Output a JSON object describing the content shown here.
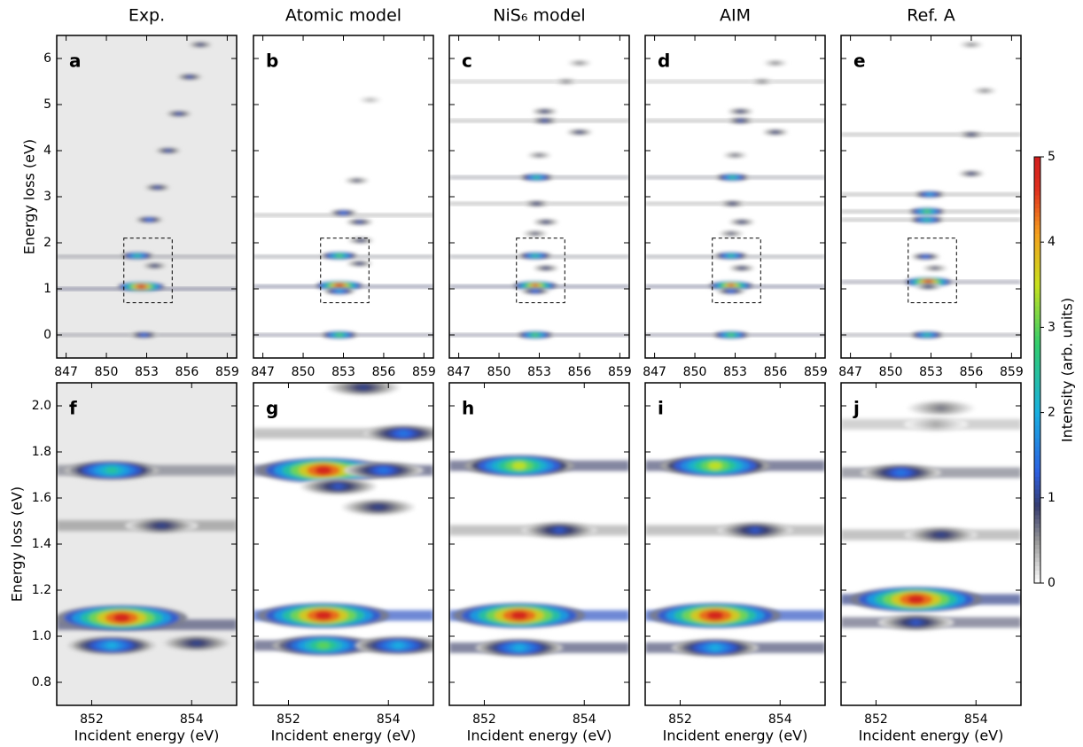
{
  "chart_data": [
    {
      "type": "heatmap",
      "title": "Exp.",
      "label": "a",
      "ylabel": "Energy loss (eV)",
      "xlim": [
        846.3,
        859.7
      ],
      "ylim": [
        -0.5,
        6.5
      ],
      "xticks": [
        847,
        850,
        853,
        856,
        859
      ],
      "yticks": [
        0,
        1,
        2,
        3,
        4,
        5,
        6
      ],
      "show_ytick_labels": true,
      "background": "#e9e9e9",
      "spots": [
        {
          "x": 852.8,
          "y": 0,
          "value": 1.5
        },
        {
          "x": 852.6,
          "y": 1.05,
          "value": 5
        },
        {
          "x": 852.3,
          "y": 1.72,
          "value": 2.5
        },
        {
          "x": 853.6,
          "y": 1.5,
          "value": 1
        },
        {
          "x": 853.2,
          "y": 2.5,
          "value": 1.5
        },
        {
          "x": 853.8,
          "y": 3.2,
          "value": 1.2
        },
        {
          "x": 854.6,
          "y": 4,
          "value": 1.2
        },
        {
          "x": 855.4,
          "y": 4.8,
          "value": 1.2
        },
        {
          "x": 856.2,
          "y": 5.6,
          "value": 1.2
        },
        {
          "x": 857,
          "y": 6.3,
          "value": 1
        }
      ],
      "bands": {
        "y": [
          0,
          1,
          1.7
        ],
        "values": [
          0.6,
          0.8,
          0.6
        ]
      }
    },
    {
      "type": "heatmap",
      "title": "Atomic model",
      "label": "b",
      "xlim": [
        846.3,
        859.7
      ],
      "ylim": [
        -0.5,
        6.5
      ],
      "xticks": [
        847,
        850,
        853,
        856,
        859
      ],
      "yticks": [
        0,
        1,
        2,
        3,
        4,
        5,
        6
      ],
      "show_ytick_labels": false,
      "spots": [
        {
          "x": 852.7,
          "y": 0,
          "value": 3
        },
        {
          "x": 852.7,
          "y": 1.07,
          "value": 5
        },
        {
          "x": 852.7,
          "y": 0.95,
          "value": 2
        },
        {
          "x": 852.7,
          "y": 1.72,
          "value": 3
        },
        {
          "x": 854.2,
          "y": 1.55,
          "value": 1
        },
        {
          "x": 854.3,
          "y": 2.05,
          "value": 1
        },
        {
          "x": 854.2,
          "y": 2.45,
          "value": 1.2
        },
        {
          "x": 853,
          "y": 2.65,
          "value": 1.5
        },
        {
          "x": 854,
          "y": 3.35,
          "value": 0.8
        },
        {
          "x": 855,
          "y": 5.1,
          "value": 0.4
        }
      ],
      "bands": {
        "y": [
          0,
          1.05,
          1.7,
          2.6
        ],
        "values": [
          0.7,
          0.8,
          0.6,
          0.5
        ]
      }
    },
    {
      "type": "heatmap",
      "title": "NiS₆ model",
      "label": "c",
      "xlim": [
        846.3,
        859.7
      ],
      "ylim": [
        -0.5,
        6.5
      ],
      "xticks": [
        847,
        850,
        853,
        856,
        859
      ],
      "yticks": [
        0,
        1,
        2,
        3,
        4,
        5,
        6
      ],
      "show_ytick_labels": false,
      "spots": [
        {
          "x": 852.7,
          "y": 0,
          "value": 3
        },
        {
          "x": 852.7,
          "y": 1.07,
          "value": 4.5
        },
        {
          "x": 852.7,
          "y": 0.95,
          "value": 1.5
        },
        {
          "x": 852.7,
          "y": 1.72,
          "value": 2.5
        },
        {
          "x": 853.5,
          "y": 1.45,
          "value": 1
        },
        {
          "x": 852.7,
          "y": 2.2,
          "value": 0.8
        },
        {
          "x": 853.5,
          "y": 2.45,
          "value": 1
        },
        {
          "x": 852.8,
          "y": 2.85,
          "value": 1
        },
        {
          "x": 852.8,
          "y": 3.42,
          "value": 2.5
        },
        {
          "x": 853,
          "y": 3.9,
          "value": 0.7
        },
        {
          "x": 853.4,
          "y": 4.65,
          "value": 1.2
        },
        {
          "x": 853.4,
          "y": 4.85,
          "value": 1
        },
        {
          "x": 856,
          "y": 4.4,
          "value": 1
        },
        {
          "x": 855,
          "y": 5.5,
          "value": 0.6
        },
        {
          "x": 856,
          "y": 5.9,
          "value": 0.6
        }
      ],
      "bands": {
        "y": [
          0,
          1.05,
          1.7,
          2.85,
          3.42,
          4.65,
          5.5
        ],
        "values": [
          0.7,
          0.8,
          0.6,
          0.5,
          0.6,
          0.5,
          0.4
        ]
      }
    },
    {
      "type": "heatmap",
      "title": "AIM",
      "label": "d",
      "xlim": [
        846.3,
        859.7
      ],
      "ylim": [
        -0.5,
        6.5
      ],
      "xticks": [
        847,
        850,
        853,
        856,
        859
      ],
      "yticks": [
        0,
        1,
        2,
        3,
        4,
        5,
        6
      ],
      "show_ytick_labels": false,
      "spots": [
        {
          "x": 852.7,
          "y": 0,
          "value": 3
        },
        {
          "x": 852.7,
          "y": 1.07,
          "value": 4.5
        },
        {
          "x": 852.7,
          "y": 0.95,
          "value": 1.5
        },
        {
          "x": 852.7,
          "y": 1.72,
          "value": 2.5
        },
        {
          "x": 853.5,
          "y": 1.45,
          "value": 1
        },
        {
          "x": 852.7,
          "y": 2.2,
          "value": 0.8
        },
        {
          "x": 853.5,
          "y": 2.45,
          "value": 1
        },
        {
          "x": 852.8,
          "y": 2.85,
          "value": 1
        },
        {
          "x": 852.8,
          "y": 3.42,
          "value": 2.5
        },
        {
          "x": 853,
          "y": 3.9,
          "value": 0.7
        },
        {
          "x": 853.4,
          "y": 4.65,
          "value": 1.2
        },
        {
          "x": 853.4,
          "y": 4.85,
          "value": 1
        },
        {
          "x": 856,
          "y": 4.4,
          "value": 1
        },
        {
          "x": 855,
          "y": 5.5,
          "value": 0.6
        },
        {
          "x": 856,
          "y": 5.9,
          "value": 0.6
        }
      ],
      "bands": {
        "y": [
          0,
          1.05,
          1.7,
          2.85,
          3.42,
          4.65,
          5.5
        ],
        "values": [
          0.7,
          0.8,
          0.6,
          0.5,
          0.6,
          0.5,
          0.4
        ]
      }
    },
    {
      "type": "heatmap",
      "title": "Ref. A",
      "label": "e",
      "xlim": [
        846.3,
        859.7
      ],
      "ylim": [
        -0.5,
        6.5
      ],
      "xticks": [
        847,
        850,
        853,
        856,
        859
      ],
      "yticks": [
        0,
        1,
        2,
        3,
        4,
        5,
        6
      ],
      "show_ytick_labels": false,
      "spots": [
        {
          "x": 852.7,
          "y": 0,
          "value": 2.5
        },
        {
          "x": 852.8,
          "y": 1.15,
          "value": 5
        },
        {
          "x": 852.8,
          "y": 1.05,
          "value": 1
        },
        {
          "x": 852.6,
          "y": 1.7,
          "value": 1.5
        },
        {
          "x": 853.3,
          "y": 1.45,
          "value": 0.8
        },
        {
          "x": 852.7,
          "y": 2.5,
          "value": 2.5
        },
        {
          "x": 852.7,
          "y": 2.68,
          "value": 3
        },
        {
          "x": 852.9,
          "y": 3.05,
          "value": 2
        },
        {
          "x": 856,
          "y": 3.5,
          "value": 1
        },
        {
          "x": 856,
          "y": 4.35,
          "value": 1
        },
        {
          "x": 857,
          "y": 5.3,
          "value": 0.6
        },
        {
          "x": 856,
          "y": 6.3,
          "value": 0.6
        }
      ],
      "bands": {
        "y": [
          0,
          1.15,
          2.5,
          2.68,
          3.05,
          4.35
        ],
        "values": [
          0.6,
          0.7,
          0.5,
          0.5,
          0.5,
          0.5
        ]
      }
    },
    {
      "type": "heatmap",
      "label": "f",
      "xlabel": "Incident energy (eV)",
      "ylabel": "Energy loss (eV)",
      "xlim": [
        851.3,
        854.9
      ],
      "ylim": [
        0.7,
        2.1
      ],
      "xticks": [
        852,
        854
      ],
      "yticks": [
        0.8,
        {
          "value": 1,
          "label": "1.0"
        },
        1.2,
        1.4,
        1.6,
        1.8,
        {
          "value": 2,
          "label": "2.0"
        }
      ],
      "show_ytick_labels": true,
      "background": "#e9e9e9",
      "spots": [
        {
          "x": 852.6,
          "y": 1.08,
          "value": 5
        },
        {
          "x": 852.4,
          "y": 0.96,
          "value": 2
        },
        {
          "x": 852.4,
          "y": 1.72,
          "value": 2.5
        },
        {
          "x": 853.4,
          "y": 1.48,
          "value": 1
        },
        {
          "x": 854.1,
          "y": 0.97,
          "value": 1
        }
      ],
      "bands": {
        "y": [
          1.05,
          1.72,
          1.48
        ],
        "values": [
          0.8,
          0.6,
          0.5
        ]
      }
    },
    {
      "type": "heatmap",
      "label": "g",
      "xlabel": "Incident energy (eV)",
      "xlim": [
        851.3,
        854.9
      ],
      "ylim": [
        0.7,
        2.1
      ],
      "xticks": [
        852,
        854
      ],
      "yticks": [
        0.8,
        {
          "value": 1,
          "label": "1.0"
        },
        1.2,
        1.4,
        1.6,
        1.8,
        {
          "value": 2,
          "label": "2.0"
        }
      ],
      "show_ytick_labels": false,
      "spots": [
        {
          "x": 852.7,
          "y": 1.09,
          "value": 5
        },
        {
          "x": 852.7,
          "y": 0.96,
          "value": 3
        },
        {
          "x": 854.2,
          "y": 0.96,
          "value": 2
        },
        {
          "x": 852.7,
          "y": 1.72,
          "value": 5
        },
        {
          "x": 853.9,
          "y": 1.72,
          "value": 1.5
        },
        {
          "x": 853,
          "y": 1.65,
          "value": 1.2
        },
        {
          "x": 854.3,
          "y": 1.88,
          "value": 1.5
        },
        {
          "x": 853.8,
          "y": 1.56,
          "value": 1
        },
        {
          "x": 853.5,
          "y": 2.08,
          "value": 1
        }
      ],
      "bands": {
        "y": [
          1.09,
          0.96,
          1.72,
          1.88
        ],
        "values": [
          1.2,
          0.8,
          0.8,
          0.4
        ]
      }
    },
    {
      "type": "heatmap",
      "label": "h",
      "xlabel": "Incident energy (eV)",
      "xlim": [
        851.3,
        854.9
      ],
      "ylim": [
        0.7,
        2.1
      ],
      "xticks": [
        852,
        854
      ],
      "yticks": [
        0.8,
        {
          "value": 1,
          "label": "1.0"
        },
        1.2,
        1.4,
        1.6,
        1.8,
        {
          "value": 2,
          "label": "2.0"
        }
      ],
      "show_ytick_labels": false,
      "spots": [
        {
          "x": 852.7,
          "y": 1.09,
          "value": 5
        },
        {
          "x": 852.7,
          "y": 0.95,
          "value": 2
        },
        {
          "x": 852.7,
          "y": 1.74,
          "value": 3.5
        },
        {
          "x": 853.5,
          "y": 1.46,
          "value": 1.2
        }
      ],
      "bands": {
        "y": [
          1.09,
          0.95,
          1.74,
          1.46
        ],
        "values": [
          1.2,
          0.8,
          0.8,
          0.4
        ]
      }
    },
    {
      "type": "heatmap",
      "label": "i",
      "xlabel": "Incident energy (eV)",
      "xlim": [
        851.3,
        854.9
      ],
      "ylim": [
        0.7,
        2.1
      ],
      "xticks": [
        852,
        854
      ],
      "yticks": [
        0.8,
        {
          "value": 1,
          "label": "1.0"
        },
        1.2,
        1.4,
        1.6,
        1.8,
        {
          "value": 2,
          "label": "2.0"
        }
      ],
      "show_ytick_labels": false,
      "spots": [
        {
          "x": 852.7,
          "y": 1.09,
          "value": 5
        },
        {
          "x": 852.7,
          "y": 0.95,
          "value": 2
        },
        {
          "x": 852.7,
          "y": 1.74,
          "value": 3.5
        },
        {
          "x": 853.5,
          "y": 1.46,
          "value": 1.2
        }
      ],
      "bands": {
        "y": [
          1.09,
          0.95,
          1.74,
          1.46
        ],
        "values": [
          1.2,
          0.8,
          0.8,
          0.4
        ]
      }
    },
    {
      "type": "heatmap",
      "label": "j",
      "xlabel": "Incident energy (eV)",
      "xlim": [
        851.3,
        854.9
      ],
      "ylim": [
        0.7,
        2.1
      ],
      "xticks": [
        852,
        854
      ],
      "yticks": [
        0.8,
        {
          "value": 1,
          "label": "1.0"
        },
        1.2,
        1.4,
        1.6,
        1.8,
        {
          "value": 2,
          "label": "2.0"
        }
      ],
      "show_ytick_labels": false,
      "spots": [
        {
          "x": 852.8,
          "y": 1.16,
          "value": 5
        },
        {
          "x": 852.8,
          "y": 1.06,
          "value": 1.2
        },
        {
          "x": 852.5,
          "y": 1.71,
          "value": 1.5
        },
        {
          "x": 853.3,
          "y": 1.44,
          "value": 1
        },
        {
          "x": 853.3,
          "y": 1.99,
          "value": 0.6
        },
        {
          "x": 853.2,
          "y": 1.92,
          "value": 0.4
        }
      ],
      "bands": {
        "y": [
          1.16,
          1.06,
          1.71,
          1.44,
          1.92
        ],
        "values": [
          1,
          0.7,
          0.6,
          0.4,
          0.3
        ]
      }
    }
  ],
  "colorbar": {
    "label": "Intensity (arb. units)",
    "lim": [
      0,
      5
    ],
    "ticks": [
      0,
      1,
      2,
      3,
      4,
      5
    ]
  }
}
